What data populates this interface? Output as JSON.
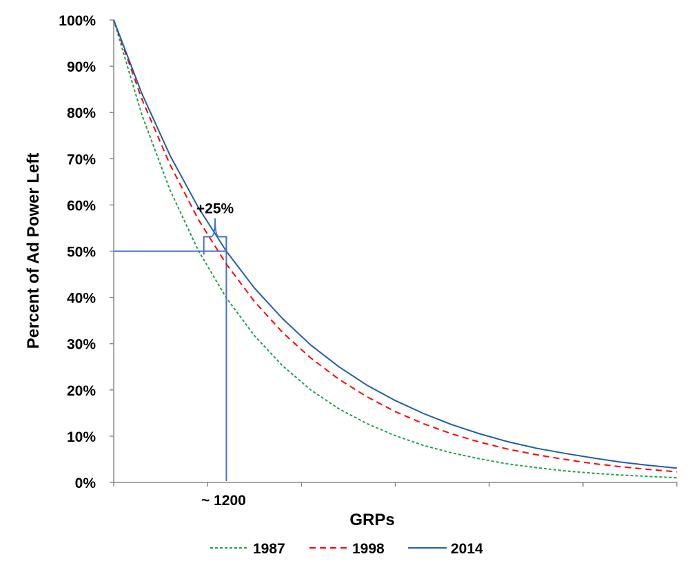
{
  "chart_data": {
    "type": "line",
    "title": "",
    "xlabel": "GRPs",
    "ylabel": "Percent of Ad Power Left",
    "ylim": [
      0,
      1
    ],
    "xlim": [
      0,
      6000
    ],
    "x_tick_labels_shown": false,
    "y_ticks": [
      {
        "value": 0,
        "label": "0%"
      },
      {
        "value": 0.1,
        "label": "10%"
      },
      {
        "value": 0.2,
        "label": "20%"
      },
      {
        "value": 0.3,
        "label": "30%"
      },
      {
        "value": 0.4,
        "label": "40%"
      },
      {
        "value": 0.5,
        "label": "50%"
      },
      {
        "value": 0.6,
        "label": "60%"
      },
      {
        "value": 0.7,
        "label": "70%"
      },
      {
        "value": 0.8,
        "label": "80%"
      },
      {
        "value": 0.9,
        "label": "90%"
      },
      {
        "value": 1.0,
        "label": "100%"
      }
    ],
    "x": [
      0,
      300,
      600,
      900,
      1200,
      1500,
      1800,
      2100,
      2400,
      2700,
      3000,
      3300,
      3600,
      3900,
      4200,
      4500,
      4800,
      5100,
      5400,
      5700,
      6000
    ],
    "series": [
      {
        "name": "1987",
        "style": "dotted",
        "color": "#1aa34a",
        "values": [
          1.0,
          0.795,
          0.632,
          0.502,
          0.399,
          0.317,
          0.252,
          0.2,
          0.159,
          0.127,
          0.101,
          0.08,
          0.064,
          0.051,
          0.04,
          0.032,
          0.025,
          0.02,
          0.016,
          0.013,
          0.01
        ]
      },
      {
        "name": "1998",
        "style": "dashed",
        "color": "#ff0000",
        "values": [
          1.0,
          0.829,
          0.687,
          0.569,
          0.472,
          0.391,
          0.324,
          0.269,
          0.223,
          0.185,
          0.153,
          0.127,
          0.105,
          0.087,
          0.072,
          0.06,
          0.05,
          0.041,
          0.034,
          0.028,
          0.023
        ]
      },
      {
        "name": "2014",
        "style": "solid",
        "color": "#1f5fa8",
        "values": [
          1.0,
          0.841,
          0.707,
          0.595,
          0.5,
          0.42,
          0.354,
          0.297,
          0.25,
          0.21,
          0.177,
          0.149,
          0.125,
          0.105,
          0.088,
          0.074,
          0.063,
          0.053,
          0.044,
          0.037,
          0.031
        ]
      }
    ],
    "annotations": [
      {
        "text": "+25%",
        "kind": "brace-label",
        "x_from": 960,
        "x_to": 1200
      },
      {
        "text": "~ 1200",
        "kind": "x-marker",
        "x": 1200,
        "y": 0.5
      }
    ],
    "guide_color": "#4a72c4",
    "legend": {
      "placement": "bottom",
      "entries": [
        "1987",
        "1998",
        "2014"
      ]
    },
    "grid": false
  }
}
